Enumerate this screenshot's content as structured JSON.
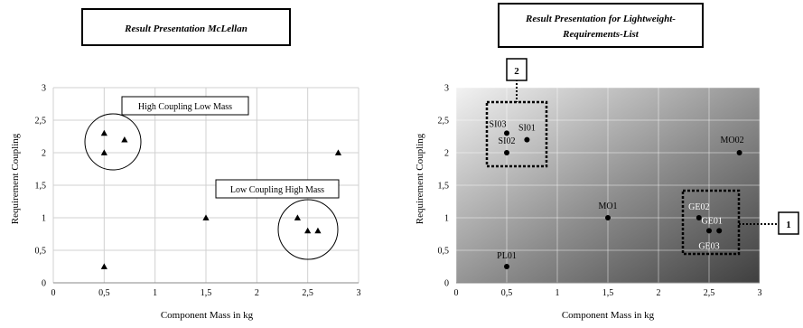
{
  "chart_data": [
    {
      "type": "scatter",
      "title": "Result Presentation McLellan",
      "xlabel": "Component Mass in kg",
      "ylabel": "Requirement Coupling",
      "xlim": [
        0,
        3
      ],
      "ylim": [
        0,
        3
      ],
      "x_ticks": [
        "0",
        "0,5",
        "1",
        "1,5",
        "2",
        "2,5",
        "3"
      ],
      "y_ticks": [
        "0",
        "0,5",
        "1",
        "1,5",
        "2",
        "2,5",
        "3"
      ],
      "grid": true,
      "marker": "triangle",
      "points": [
        {
          "x": 0.5,
          "y": 2.3
        },
        {
          "x": 0.5,
          "y": 2.0
        },
        {
          "x": 0.7,
          "y": 2.2
        },
        {
          "x": 0.5,
          "y": 0.25
        },
        {
          "x": 1.5,
          "y": 1.0
        },
        {
          "x": 2.4,
          "y": 1.0
        },
        {
          "x": 2.5,
          "y": 0.8
        },
        {
          "x": 2.6,
          "y": 0.8
        },
        {
          "x": 2.8,
          "y": 2.0
        }
      ],
      "annotations": [
        "High Coupling Low Mass",
        "Low Coupling High Mass"
      ]
    },
    {
      "type": "scatter",
      "title": "Result Presentation for Lightweight-Requirements-List",
      "title_lines": [
        "Result Presentation for Lightweight-",
        "Requirements-List"
      ],
      "xlabel": "Component Mass in kg",
      "ylabel": "Requirement Coupling",
      "xlim": [
        0,
        3
      ],
      "ylim": [
        0,
        3
      ],
      "x_ticks": [
        "0",
        "0,5",
        "1",
        "1,5",
        "2",
        "2,5",
        "3"
      ],
      "y_ticks": [
        "0",
        "0,5",
        "1",
        "1,5",
        "2",
        "2,5",
        "3"
      ],
      "grid": true,
      "background": "gradient light top-left to dark bottom-right",
      "marker": "dot",
      "points": [
        {
          "x": 0.5,
          "y": 2.3,
          "label": "SI03"
        },
        {
          "x": 0.7,
          "y": 2.2,
          "label": "SI01"
        },
        {
          "x": 0.5,
          "y": 2.0,
          "label": "SI02"
        },
        {
          "x": 2.8,
          "y": 2.0,
          "label": "MO02"
        },
        {
          "x": 1.5,
          "y": 1.0,
          "label": "MO1"
        },
        {
          "x": 2.4,
          "y": 1.0,
          "label": "GE02"
        },
        {
          "x": 2.6,
          "y": 0.8,
          "label": "GE01"
        },
        {
          "x": 2.5,
          "y": 0.8,
          "label": "GE03"
        },
        {
          "x": 0.5,
          "y": 0.25,
          "label": "PL01"
        }
      ],
      "callouts": [
        "2",
        "1"
      ]
    }
  ]
}
